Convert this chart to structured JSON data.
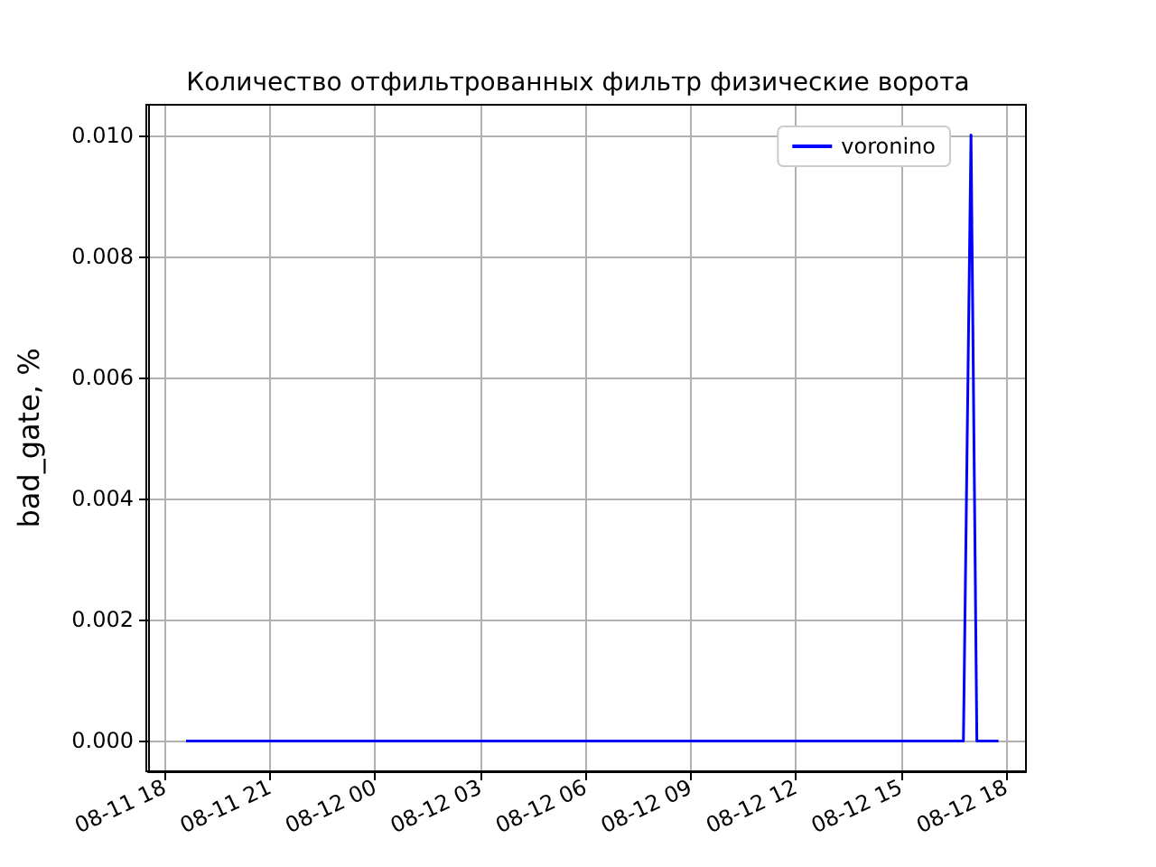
{
  "chart_data": {
    "type": "line",
    "title": "Количество отфильтрованных фильтр физические ворота",
    "ylabel": "bad_gate, %",
    "x": [
      "--08-11T18:37",
      "--08-12T16:47",
      "--08-12T17:00",
      "--08-12T17:10",
      "--08-12T17:47"
    ],
    "series": [
      {
        "name": "voronino",
        "color": "#0000ff",
        "values": [
          0,
          0,
          0.01,
          0,
          0
        ]
      }
    ],
    "xlim": [
      "--08-11T17:32",
      "--08-12T18:34"
    ],
    "xticks": [
      {
        "value": "--08-11T18:00",
        "label": "08-11 18"
      },
      {
        "value": "--08-11T21:00",
        "label": "08-11 21"
      },
      {
        "value": "--08-12T00:00",
        "label": "08-12 00"
      },
      {
        "value": "--08-12T03:00",
        "label": "08-12 03"
      },
      {
        "value": "--08-12T06:00",
        "label": "08-12 06"
      },
      {
        "value": "--08-12T09:00",
        "label": "08-12 09"
      },
      {
        "value": "--08-12T12:00",
        "label": "08-12 12"
      },
      {
        "value": "--08-12T15:00",
        "label": "08-12 15"
      },
      {
        "value": "--08-12T18:00",
        "label": "08-12 18"
      }
    ],
    "ylim": [
      -0.0005,
      0.0105
    ],
    "yticks": [
      {
        "value": 0,
        "label": "0.000"
      },
      {
        "value": 0.002,
        "label": "0.002"
      },
      {
        "value": 0.004,
        "label": "0.004"
      },
      {
        "value": 0.006,
        "label": "0.006"
      },
      {
        "value": 0.008,
        "label": "0.008"
      },
      {
        "value": 0.01,
        "label": "0.010"
      }
    ],
    "grid": true,
    "legend": "top right",
    "marker": "none",
    "line_style": "solid"
  }
}
